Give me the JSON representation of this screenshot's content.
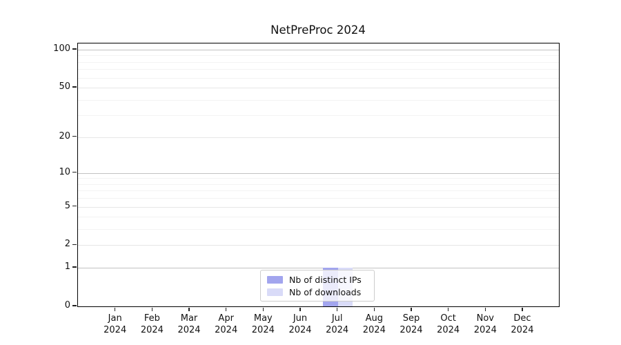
{
  "title": "NetPreProc 2024",
  "chart_data": {
    "type": "bar",
    "title": "NetPreProc 2024",
    "categories": [
      "Jan",
      "Feb",
      "Mar",
      "Apr",
      "May",
      "Jun",
      "Jul",
      "Aug",
      "Sep",
      "Oct",
      "Nov",
      "Dec"
    ],
    "category_year": "2024",
    "series": [
      {
        "name": "Nb of distinct IPs",
        "color": "#a2a5ee",
        "values": [
          0,
          0,
          0,
          0,
          0,
          0,
          1,
          0,
          0,
          0,
          0,
          0
        ]
      },
      {
        "name": "Nb of downloads",
        "color": "#d9dbf8",
        "values": [
          0,
          0,
          0,
          0,
          0,
          0,
          1,
          0,
          0,
          0,
          0,
          0
        ]
      }
    ],
    "xlabel": "",
    "ylabel": "",
    "y_ticks": [
      0,
      1,
      2,
      5,
      10,
      20,
      50,
      100
    ],
    "y_minor_gridlines": [
      3,
      4,
      6,
      7,
      8,
      9,
      30,
      40,
      60,
      70,
      80,
      90
    ],
    "ylim": [
      0,
      110
    ],
    "scale": "log1p",
    "grid": true,
    "legend_position": "lower center"
  }
}
